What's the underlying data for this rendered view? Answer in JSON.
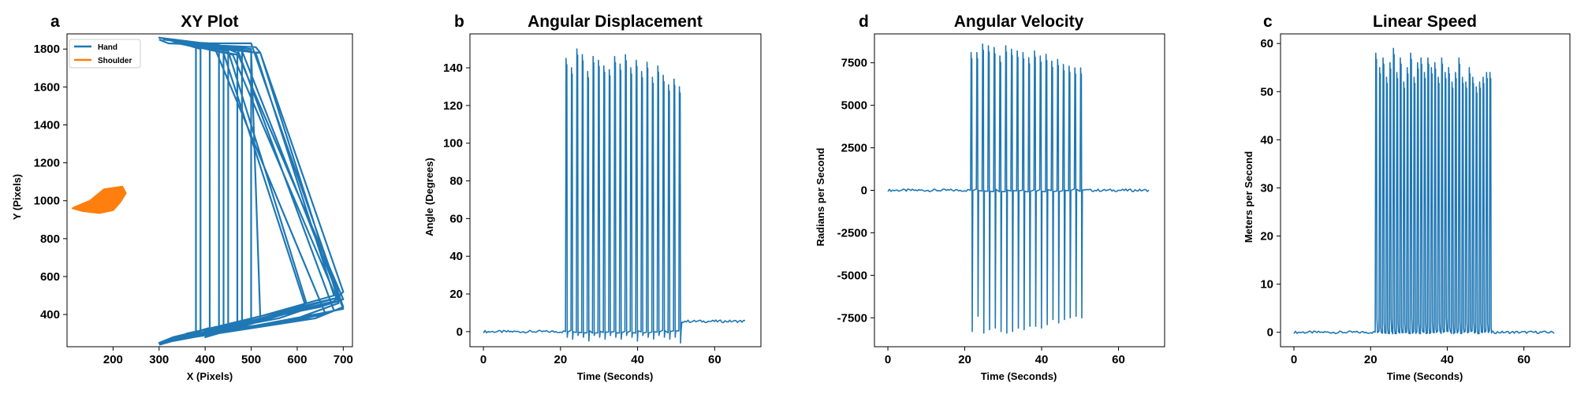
{
  "colors": {
    "hand": "#1f77b4",
    "shoulder": "#ff7f0e",
    "axes": "#000000",
    "background": "#ffffff"
  },
  "chart_data": [
    {
      "id": "xy",
      "letter": "a",
      "type": "line",
      "title": "XY Plot",
      "xlabel": "X (Pixels)",
      "ylabel": "Y (Pixels)",
      "xlim": [
        100,
        720
      ],
      "ylim": [
        230,
        1880
      ],
      "xticks": [
        200,
        300,
        400,
        500,
        600,
        700
      ],
      "yticks": [
        400,
        600,
        800,
        1000,
        1200,
        1400,
        1600,
        1800
      ],
      "grid": false,
      "legend_position": "top-left",
      "series": [
        {
          "name": "Hand",
          "color": "#1f77b4",
          "kind": "path",
          "points": [
            [
              300,
              1850
            ],
            [
              320,
              1830
            ],
            [
              510,
              1810
            ],
            [
              520,
              1780
            ],
            [
              700,
              520
            ],
            [
              680,
              470
            ],
            [
              300,
              250
            ],
            [
              330,
              280
            ],
            [
              690,
              490
            ],
            [
              660,
              470
            ],
            [
              380,
              290
            ],
            [
              380,
              1810
            ],
            [
              390,
              1830
            ],
            [
              500,
              1830
            ],
            [
              700,
              440
            ],
            [
              660,
              400
            ],
            [
              340,
              270
            ],
            [
              520,
              370
            ],
            [
              500,
              1790
            ],
            [
              340,
              1840
            ],
            [
              470,
              1800
            ],
            [
              680,
              420
            ],
            [
              640,
              380
            ],
            [
              320,
              260
            ],
            [
              480,
              360
            ],
            [
              480,
              1800
            ],
            [
              430,
              1820
            ],
            [
              470,
              1780
            ],
            [
              700,
              480
            ],
            [
              650,
              440
            ],
            [
              360,
              300
            ],
            [
              440,
              340
            ],
            [
              440,
              1810
            ],
            [
              380,
              1820
            ],
            [
              460,
              1770
            ],
            [
              690,
              460
            ],
            [
              600,
              380
            ],
            [
              300,
              250
            ],
            [
              410,
              330
            ],
            [
              410,
              1830
            ],
            [
              330,
              1840
            ],
            [
              440,
              1780
            ],
            [
              620,
              430
            ],
            [
              560,
              380
            ],
            [
              340,
              280
            ],
            [
              470,
              330
            ],
            [
              470,
              1770
            ],
            [
              360,
              1820
            ],
            [
              520,
              1780
            ],
            [
              690,
              470
            ],
            [
              640,
              440
            ],
            [
              320,
              260
            ],
            [
              500,
              360
            ],
            [
              500,
              1800
            ],
            [
              310,
              1850
            ],
            [
              420,
              1810
            ],
            [
              660,
              410
            ],
            [
              620,
              380
            ],
            [
              360,
              290
            ],
            [
              430,
              320
            ],
            [
              430,
              1820
            ],
            [
              300,
              1860
            ],
            [
              450,
              1790
            ],
            [
              620,
              460
            ],
            [
              570,
              400
            ],
            [
              400,
              280
            ],
            [
              450,
              330
            ],
            [
              450,
              1780
            ],
            [
              340,
              1830
            ],
            [
              480,
              1790
            ],
            [
              700,
              430
            ],
            [
              660,
              410
            ],
            [
              330,
              260
            ],
            [
              390,
              310
            ],
            [
              390,
              1800
            ],
            [
              320,
              1850
            ],
            [
              510,
              1780
            ],
            [
              680,
              500
            ],
            [
              300,
              240
            ]
          ]
        },
        {
          "name": "Shoulder",
          "color": "#ff7f0e",
          "kind": "blob",
          "points": [
            [
              115,
              965
            ],
            [
              150,
              1000
            ],
            [
              180,
              1060
            ],
            [
              220,
              1075
            ],
            [
              228,
              1040
            ],
            [
              215,
              990
            ],
            [
              200,
              950
            ],
            [
              170,
              935
            ],
            [
              135,
              945
            ],
            [
              112,
              960
            ]
          ]
        }
      ]
    },
    {
      "id": "disp",
      "letter": "b",
      "type": "line",
      "title": "Angular Displacement",
      "xlabel": "Time (Seconds)",
      "ylabel": "Angle (Degrees)",
      "xlim": [
        -3.5,
        72
      ],
      "ylim": [
        -8,
        158
      ],
      "xticks": [
        0,
        20,
        40,
        60
      ],
      "yticks": [
        0,
        20,
        40,
        60,
        80,
        100,
        120,
        140
      ],
      "grid": false,
      "series": [
        {
          "name": "",
          "color": "#1f77b4",
          "rest_level": 0,
          "rest_level_after": 5.5,
          "activity": [
            21,
            51
          ],
          "spike_times": [
            21.6,
            23.0,
            24.4,
            25.8,
            27.2,
            28.6,
            30.0,
            31.4,
            32.8,
            34.2,
            35.6,
            37.0,
            38.4,
            39.8,
            41.2,
            42.6,
            44.0,
            45.4,
            46.8,
            48.2,
            49.6,
            51.0
          ],
          "spike_values": [
            145,
            140,
            150,
            147,
            138,
            146,
            144,
            141,
            139,
            146,
            142,
            147,
            140,
            144,
            138,
            143,
            135,
            141,
            136,
            131,
            134,
            130
          ],
          "spike_dips": [
            -3,
            -4,
            -2,
            -3,
            -5,
            -2,
            -3,
            -4,
            -2,
            -3,
            -4,
            -2,
            -3,
            -5,
            -2,
            -3,
            -4,
            -2,
            -3,
            -4,
            -3,
            -6
          ]
        }
      ]
    },
    {
      "id": "vel",
      "letter": "d",
      "type": "line",
      "title": "Angular Velocity",
      "xlabel": "Time (Seconds)",
      "ylabel": "Radians per Second",
      "xlim": [
        -3.5,
        72
      ],
      "ylim": [
        -9200,
        9200
      ],
      "xticks": [
        0,
        20,
        40,
        60
      ],
      "yticks": [
        -7500,
        -5000,
        -2500,
        0,
        2500,
        5000,
        7500
      ],
      "grid": false,
      "series": [
        {
          "name": "",
          "color": "#1f77b4",
          "rest_level": 0,
          "rest_level_after": 0,
          "activity": [
            21,
            51
          ],
          "spike_times": [
            21.8,
            23.3,
            24.8,
            26.3,
            27.8,
            29.3,
            30.8,
            32.3,
            33.8,
            35.3,
            36.8,
            38.3,
            39.8,
            41.3,
            42.8,
            44.3,
            45.8,
            47.3,
            48.8,
            50.3
          ],
          "spike_values": [
            8100,
            8100,
            8600,
            8500,
            8400,
            7900,
            8500,
            8300,
            8200,
            8100,
            7800,
            8200,
            7900,
            8000,
            7600,
            7700,
            7400,
            7300,
            7200,
            7200
          ],
          "spike_dips": [
            -8300,
            -7400,
            -8400,
            -8200,
            -8100,
            -8300,
            -8400,
            -8300,
            -8100,
            -8200,
            -8000,
            -8000,
            -8100,
            -7900,
            -7600,
            -7800,
            -7600,
            -7500,
            -7400,
            -7500
          ]
        }
      ]
    },
    {
      "id": "speed",
      "letter": "c",
      "type": "line",
      "title": "Linear Speed",
      "xlabel": "Time (Seconds)",
      "ylabel": "Meters per Second",
      "xlim": [
        -3.5,
        72
      ],
      "ylim": [
        -3,
        62
      ],
      "xticks": [
        0,
        20,
        40,
        60
      ],
      "yticks": [
        0,
        10,
        20,
        30,
        40,
        50,
        60
      ],
      "grid": false,
      "series": [
        {
          "name": "",
          "color": "#1f77b4",
          "rest_level": 0,
          "rest_level_after": 0,
          "activity": [
            21,
            51
          ],
          "spike_times": [
            21.5,
            22.5,
            23.4,
            24.3,
            25.2,
            26.1,
            27.0,
            27.9,
            28.8,
            29.7,
            30.6,
            31.5,
            32.4,
            33.3,
            34.2,
            35.1,
            36.0,
            36.9,
            37.8,
            38.7,
            39.6,
            40.5,
            41.4,
            42.3,
            43.2,
            44.1,
            45.0,
            45.9,
            46.8,
            47.7,
            48.6,
            49.5,
            50.4,
            51.3
          ],
          "spike_values": [
            58,
            55,
            57,
            53,
            56,
            59,
            54,
            57,
            52,
            55,
            58,
            53,
            56,
            57,
            54,
            57,
            55,
            56,
            53,
            57,
            54,
            55,
            52,
            54,
            57,
            53,
            52,
            55,
            53,
            51,
            52,
            53,
            54,
            54
          ],
          "spike_dips": [
            3,
            1,
            2,
            1,
            3,
            1,
            2,
            1,
            2,
            1,
            3,
            1,
            2,
            1,
            2,
            1,
            2,
            1,
            2,
            1,
            3,
            1,
            2,
            1,
            2,
            1,
            2,
            1,
            2,
            1,
            2,
            1,
            2,
            1
          ]
        }
      ]
    }
  ]
}
